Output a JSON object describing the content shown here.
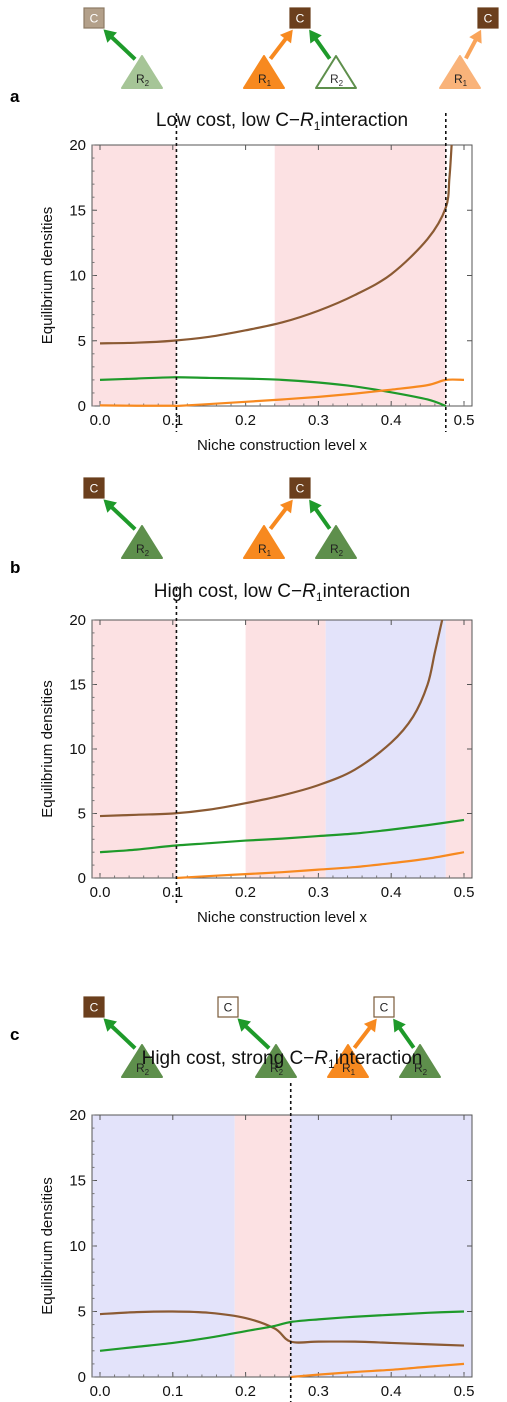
{
  "colors": {
    "C": "#8B5A33",
    "R1": "#F7891F",
    "R2": "#1E9A2A",
    "stable": "#FCE1E3",
    "other": "#E3E3FA",
    "icon_C_dark": "#6B3F1D",
    "icon_R2_green": "#5E8F4C",
    "icon_R1_orange": "#F7891F"
  },
  "axes": {
    "xlabel": "Niche construction level x",
    "ylabel": "Equilibrium densities",
    "xticks": [
      "0.0",
      "0.1",
      "0.2",
      "0.3",
      "0.4",
      "0.5"
    ],
    "yticks": [
      "0",
      "5",
      "10",
      "15",
      "20"
    ],
    "xlim": [
      0,
      0.5
    ],
    "ylim": [
      0,
      20
    ]
  },
  "chart_data": [
    {
      "type": "line",
      "panel": "a",
      "title_prefix": "Low cost, low C−",
      "title_var": "R",
      "title_sub": "1",
      "title_suffix": "interaction",
      "xlabel": "Niche construction level x",
      "ylabel": "Equilibrium densities",
      "xlim": [
        0,
        0.5
      ],
      "ylim": [
        0,
        20
      ],
      "bands": [
        {
          "from": 0.0,
          "to": 0.105,
          "kind": "stable"
        },
        {
          "from": 0.24,
          "to": 0.475,
          "kind": "stable"
        }
      ],
      "vlines": [
        0.105,
        0.475
      ],
      "series": [
        {
          "key": "C",
          "x": [
            0,
            0.05,
            0.1,
            0.15,
            0.2,
            0.25,
            0.3,
            0.35,
            0.4,
            0.45,
            0.475,
            0.48,
            0.483
          ],
          "y": [
            4.8,
            4.85,
            5.0,
            5.3,
            5.8,
            6.4,
            7.3,
            8.5,
            10.1,
            12.8,
            15.2,
            17.5,
            20
          ]
        },
        {
          "key": "R2",
          "x": [
            0,
            0.05,
            0.1,
            0.15,
            0.2,
            0.25,
            0.3,
            0.35,
            0.4,
            0.45,
            0.475
          ],
          "y": [
            2.0,
            2.1,
            2.2,
            2.15,
            2.1,
            2.0,
            1.8,
            1.5,
            1.05,
            0.5,
            0.0
          ]
        },
        {
          "key": "R1",
          "x": [
            0,
            0.05,
            0.1,
            0.105,
            0.15,
            0.2,
            0.25,
            0.3,
            0.35,
            0.4,
            0.45,
            0.475,
            0.5
          ],
          "y": [
            0.05,
            0.02,
            0.02,
            0.0,
            0.15,
            0.32,
            0.5,
            0.7,
            0.95,
            1.25,
            1.6,
            2.0,
            2.0
          ]
        }
      ],
      "icons": [
        {
          "x": 0.0,
          "C": "light",
          "arrows": [
            "R2"
          ]
        },
        {
          "x": 0.29,
          "C": "dark",
          "arrows": [
            "R1",
            "R2"
          ]
        },
        {
          "x": 0.49,
          "C": "dark",
          "arrows": [
            "R1"
          ]
        }
      ]
    },
    {
      "type": "line",
      "panel": "b",
      "title_prefix": "High cost, low C−",
      "title_var": "R",
      "title_sub": "1",
      "title_suffix": "interaction",
      "xlabel": "Niche construction level x",
      "ylabel": "Equilibrium densities",
      "xlim": [
        0,
        0.5
      ],
      "ylim": [
        0,
        20
      ],
      "bands": [
        {
          "from": 0.0,
          "to": 0.105,
          "kind": "stable"
        },
        {
          "from": 0.2,
          "to": 0.31,
          "kind": "stable"
        },
        {
          "from": 0.31,
          "to": 0.475,
          "kind": "other"
        },
        {
          "from": 0.475,
          "to": 0.5,
          "kind": "stable"
        }
      ],
      "vlines": [
        0.105
      ],
      "series": [
        {
          "key": "C",
          "x": [
            0,
            0.05,
            0.1,
            0.15,
            0.2,
            0.25,
            0.3,
            0.35,
            0.4,
            0.43,
            0.45,
            0.46,
            0.47
          ],
          "y": [
            4.8,
            4.9,
            5.0,
            5.3,
            5.8,
            6.4,
            7.2,
            8.4,
            10.5,
            12.5,
            15.0,
            17.5,
            20
          ]
        },
        {
          "key": "R2",
          "x": [
            0,
            0.05,
            0.1,
            0.15,
            0.2,
            0.25,
            0.3,
            0.35,
            0.4,
            0.45,
            0.5
          ],
          "y": [
            2.0,
            2.2,
            2.5,
            2.7,
            2.9,
            3.05,
            3.25,
            3.45,
            3.75,
            4.1,
            4.5
          ]
        },
        {
          "key": "R1",
          "x": [
            0.105,
            0.15,
            0.2,
            0.25,
            0.3,
            0.35,
            0.4,
            0.45,
            0.5
          ],
          "y": [
            0.0,
            0.15,
            0.3,
            0.45,
            0.65,
            0.85,
            1.15,
            1.5,
            2.0
          ]
        }
      ],
      "icons": [
        {
          "x": 0.0,
          "C": "dark",
          "arrows": [
            "R2"
          ]
        },
        {
          "x": 0.29,
          "C": "dark",
          "arrows": [
            "R1",
            "R2"
          ]
        }
      ]
    },
    {
      "type": "line",
      "panel": "c",
      "title_prefix": "High cost, strong C−",
      "title_var": "R",
      "title_sub": "1",
      "title_suffix": "interaction",
      "xlabel": "Niche construction level x",
      "ylabel": "Equilibrium densities",
      "xlim": [
        0,
        0.5
      ],
      "ylim": [
        0,
        20
      ],
      "bands": [
        {
          "from": 0.0,
          "to": 0.185,
          "kind": "other"
        },
        {
          "from": 0.185,
          "to": 0.262,
          "kind": "stable"
        },
        {
          "from": 0.262,
          "to": 0.5,
          "kind": "other"
        }
      ],
      "vlines": [
        0.262
      ],
      "series": [
        {
          "key": "C",
          "x": [
            0,
            0.05,
            0.1,
            0.15,
            0.2,
            0.24,
            0.262,
            0.3,
            0.35,
            0.4,
            0.45,
            0.5
          ],
          "y": [
            4.8,
            4.95,
            5.0,
            4.9,
            4.5,
            3.7,
            2.7,
            2.7,
            2.7,
            2.6,
            2.5,
            2.4
          ]
        },
        {
          "key": "R2",
          "x": [
            0,
            0.05,
            0.1,
            0.15,
            0.2,
            0.24,
            0.262,
            0.3,
            0.35,
            0.4,
            0.45,
            0.5
          ],
          "y": [
            2.0,
            2.3,
            2.6,
            3.0,
            3.5,
            3.9,
            4.2,
            4.4,
            4.6,
            4.75,
            4.9,
            5.0
          ]
        },
        {
          "key": "R1",
          "x": [
            0.262,
            0.3,
            0.35,
            0.4,
            0.45,
            0.5
          ],
          "y": [
            0.0,
            0.18,
            0.38,
            0.55,
            0.78,
            1.0
          ]
        }
      ],
      "icons": [
        {
          "x": 0.0,
          "C": "dark",
          "arrows": [
            "R2"
          ]
        },
        {
          "x": 0.17,
          "C": "white",
          "arrows": [
            "R2"
          ]
        },
        {
          "x": 0.35,
          "C": "white",
          "arrows": [
            "R1",
            "R2"
          ]
        }
      ]
    }
  ],
  "icon_labels": {
    "C": "C",
    "R": "R",
    "sub1": "1",
    "sub2": "2"
  }
}
